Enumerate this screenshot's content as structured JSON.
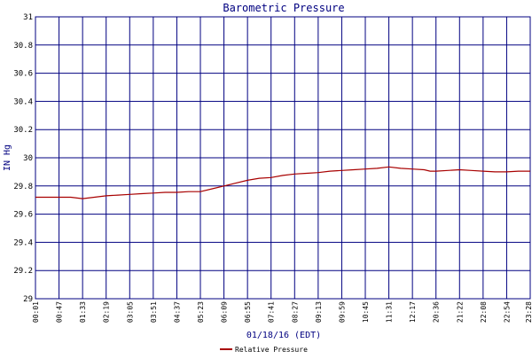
{
  "chart_data": {
    "type": "line",
    "title": "Barometric Pressure",
    "xlabel": "01/18/16 (EDT)",
    "ylabel": "IN Hg",
    "ylim": [
      29,
      31
    ],
    "yticks": [
      "29",
      "29.2",
      "29.4",
      "29.6",
      "29.8",
      "30",
      "30.2",
      "30.4",
      "30.6",
      "30.8",
      "31"
    ],
    "xticks": [
      "00:01",
      "00:47",
      "01:33",
      "02:19",
      "03:05",
      "03:51",
      "04:37",
      "05:23",
      "06:09",
      "06:55",
      "07:41",
      "08:27",
      "09:13",
      "09:59",
      "10:45",
      "11:31",
      "12:17",
      "20:36",
      "21:22",
      "22:08",
      "22:54",
      "23:28"
    ],
    "grid": true,
    "legend_position": "bottom",
    "colors": {
      "series": "#a80000",
      "grid": "#000080",
      "frame": "#000080",
      "title": "#000080"
    },
    "series": [
      {
        "name": "Relative Pressure",
        "x_index": [
          0,
          0.5,
          1,
          1.5,
          2,
          2.5,
          3,
          3.5,
          4,
          4.5,
          5,
          5.5,
          6,
          6.5,
          7,
          7.5,
          8,
          8.5,
          9,
          9.5,
          10,
          10.5,
          11,
          11.5,
          12,
          12.5,
          13,
          13.5,
          14,
          14.5,
          15,
          15.5,
          16,
          16.5,
          16.75,
          17,
          17.5,
          18,
          18.5,
          19,
          19.5,
          20,
          20.5,
          21
        ],
        "values": [
          29.72,
          29.72,
          29.72,
          29.72,
          29.71,
          29.72,
          29.73,
          29.735,
          29.74,
          29.745,
          29.75,
          29.755,
          29.755,
          29.76,
          29.76,
          29.78,
          29.8,
          29.82,
          29.84,
          29.855,
          29.86,
          29.875,
          29.885,
          29.89,
          29.895,
          29.905,
          29.91,
          29.915,
          29.92,
          29.925,
          29.935,
          29.925,
          29.92,
          29.915,
          29.905,
          29.905,
          29.91,
          29.915,
          29.91,
          29.905,
          29.9,
          29.9,
          29.905,
          29.905
        ]
      }
    ]
  }
}
